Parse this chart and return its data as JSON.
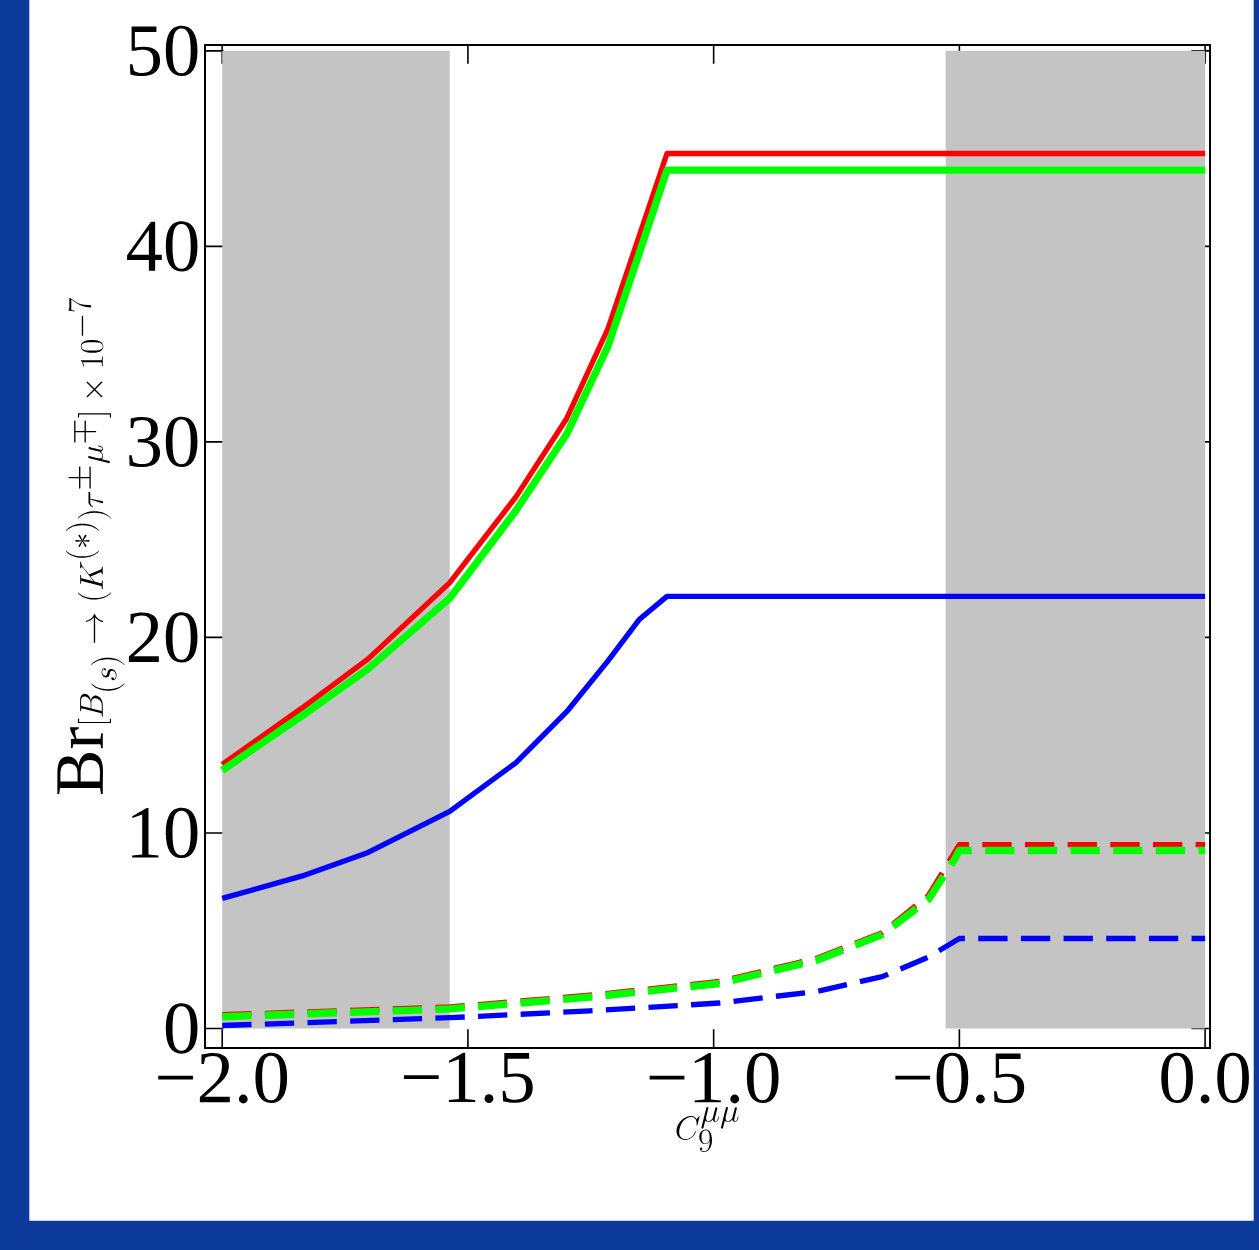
{
  "chart_data": {
    "type": "line",
    "xlabel": "C_9^{\\mu\\mu}",
    "ylabel": "\\mathrm{Br}[B_{(s)}\\to(K^{(*)})\\tau^{\\pm}\\mu^{\\mp}]\\times10^{-7}",
    "xlim": [
      -2.035,
      0.01
    ],
    "ylim": [
      -1,
      50.3
    ],
    "xticks": [
      {
        "value": -2.0,
        "label": "−2.0"
      },
      {
        "value": -1.5,
        "label": "−1.5"
      },
      {
        "value": -1.0,
        "label": "−1.0"
      },
      {
        "value": -0.5,
        "label": "−0.5"
      },
      {
        "value": 0.0,
        "label": "0.0"
      }
    ],
    "yticks": [
      0,
      10,
      20,
      30,
      40,
      50
    ],
    "grid": false,
    "marker": "none",
    "bands": [
      {
        "axis": "x",
        "from": -2.0,
        "to": -1.537,
        "color": "#c4c4c4"
      },
      {
        "axis": "x",
        "from": -0.528,
        "to": 0.0,
        "color": "#c4c4c4"
      }
    ],
    "series": [
      {
        "color": "#ff0000",
        "line_style": "solid",
        "x": [
          -2.0,
          -1.837,
          -1.703,
          -1.537,
          -1.402,
          -1.299,
          -1.215,
          -1.152,
          -1.095,
          0.0
        ],
        "values": [
          13.5,
          16.4,
          18.9,
          22.8,
          27.2,
          31.2,
          35.8,
          40.5,
          44.75,
          44.75
        ]
      },
      {
        "color": "#00ff00",
        "line_style": "solid",
        "x": [
          -2.0,
          -1.837,
          -1.703,
          -1.537,
          -1.402,
          -1.299,
          -1.215,
          -1.152,
          -1.095,
          0.0
        ],
        "values": [
          13.2,
          16.0,
          18.4,
          22.0,
          26.5,
          30.4,
          34.9,
          39.6,
          43.9,
          43.9
        ]
      },
      {
        "color": "#0000ff",
        "line_style": "solid",
        "x": [
          -2.0,
          -1.837,
          -1.703,
          -1.537,
          -1.402,
          -1.299,
          -1.215,
          -1.152,
          -1.095,
          0.0
        ],
        "values": [
          6.65,
          7.8,
          9.0,
          11.1,
          13.6,
          16.2,
          18.8,
          20.9,
          22.1,
          22.1
        ]
      },
      {
        "color": "#ff0000",
        "line_style": "dashed",
        "x": [
          -2.0,
          -1.537,
          -1.252,
          -0.988,
          -0.789,
          -0.657,
          -0.563,
          -0.5,
          0.0
        ],
        "values": [
          0.7,
          1.1,
          1.7,
          2.4,
          3.6,
          4.9,
          6.8,
          9.4,
          9.4
        ]
      },
      {
        "color": "#00ff00",
        "line_style": "dashed",
        "x": [
          -2.0,
          -1.537,
          -1.252,
          -0.988,
          -0.789,
          -0.657,
          -0.563,
          -0.511,
          -0.5,
          0.0
        ],
        "values": [
          0.6,
          1.0,
          1.6,
          2.3,
          3.5,
          4.8,
          6.6,
          8.6,
          9.1,
          9.1
        ]
      },
      {
        "color": "#0000ff",
        "line_style": "dashed",
        "x": [
          -2.0,
          -1.537,
          -1.252,
          -0.988,
          -0.789,
          -0.657,
          -0.563,
          -0.5,
          0.0
        ],
        "values": [
          0.15,
          0.55,
          0.9,
          1.3,
          1.9,
          2.65,
          3.65,
          4.6,
          4.6
        ]
      }
    ]
  }
}
